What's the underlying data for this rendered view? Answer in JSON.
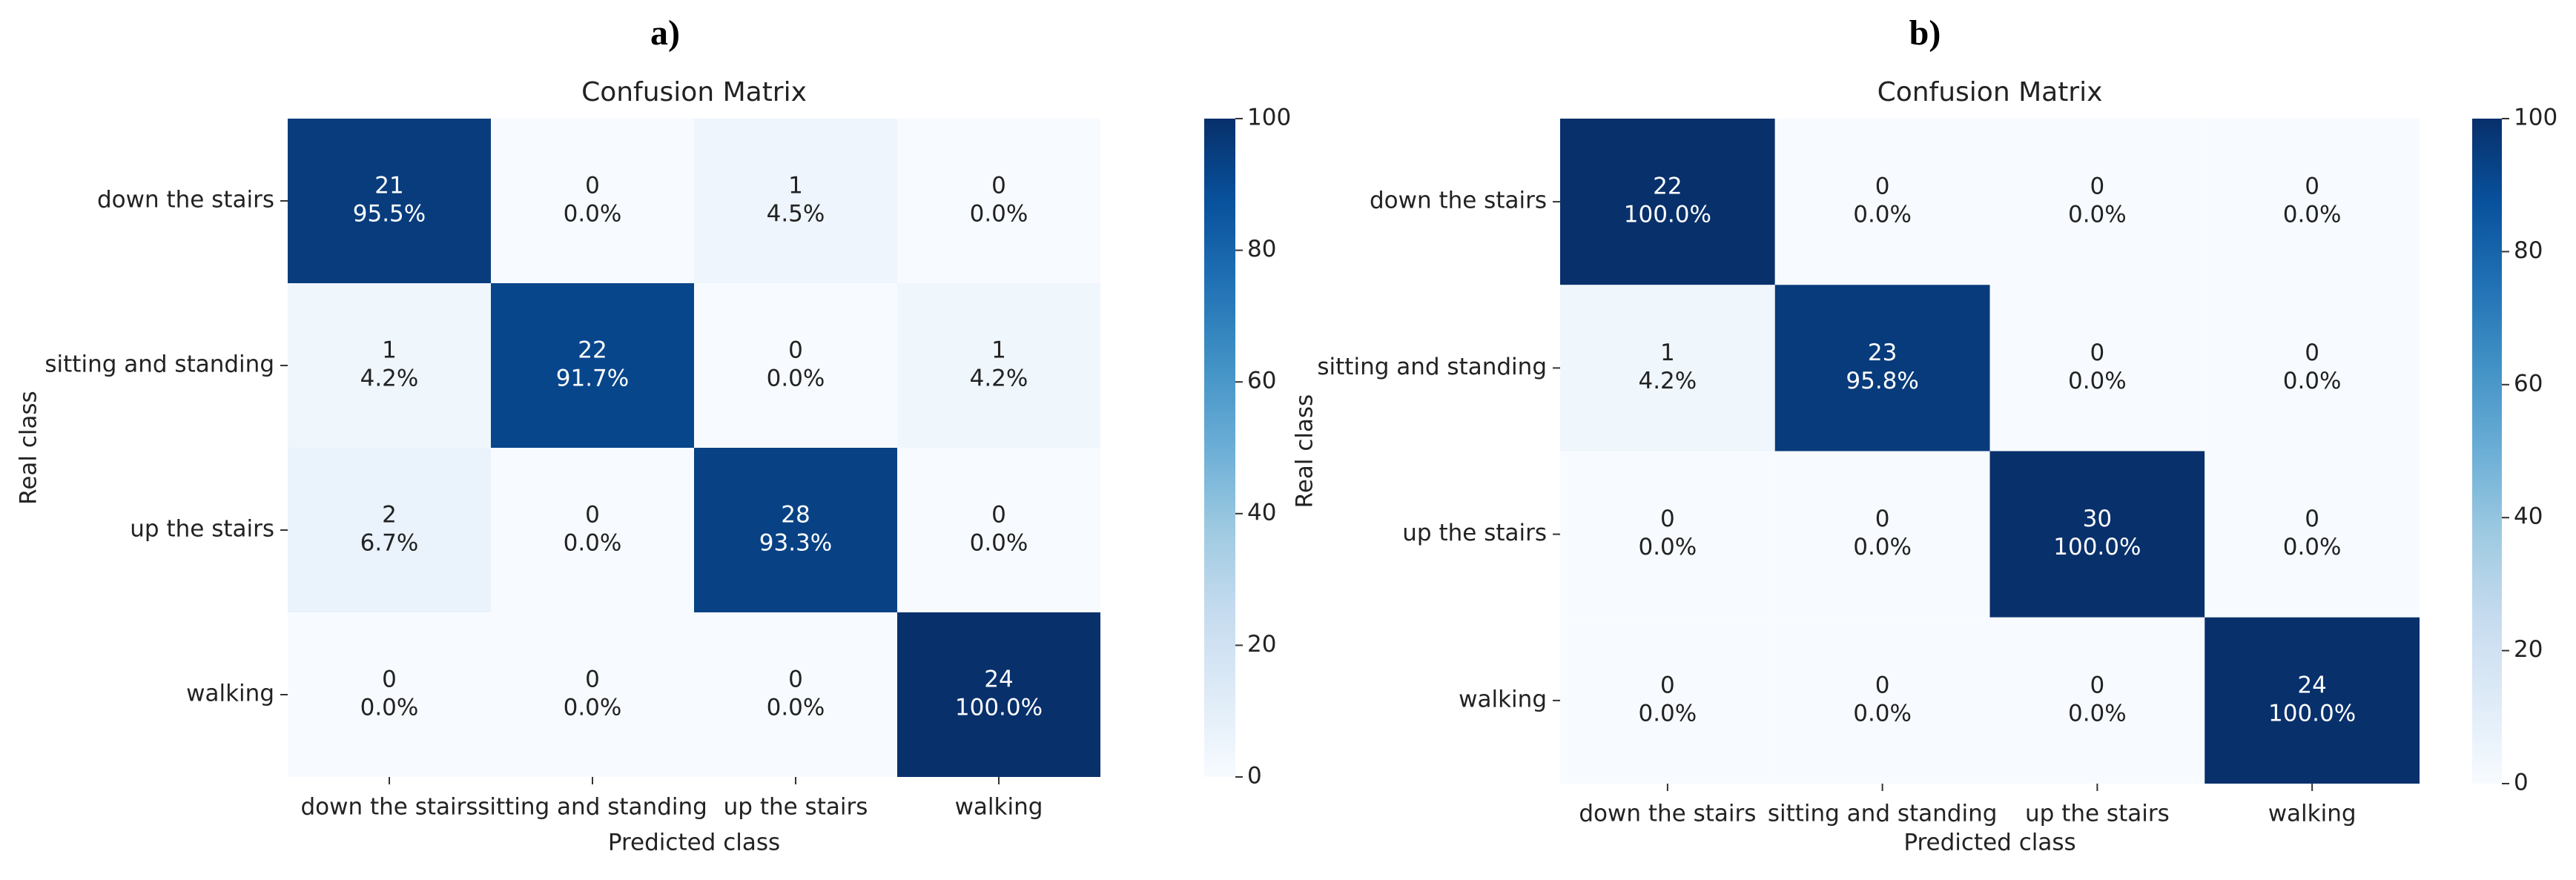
{
  "chart_data": [
    {
      "type": "heatmap",
      "label": "a)",
      "title": "Confusion Matrix",
      "xlabel": "Predicted class",
      "ylabel": "Real class",
      "x_categories": [
        "down the stairs",
        "sitting and standing",
        "up the stairs",
        "walking"
      ],
      "y_categories": [
        "down the stairs",
        "sitting and standing",
        "up the stairs",
        "walking"
      ],
      "counts": [
        [
          21,
          0,
          1,
          0
        ],
        [
          1,
          22,
          0,
          1
        ],
        [
          2,
          0,
          28,
          0
        ],
        [
          0,
          0,
          0,
          24
        ]
      ],
      "values": [
        [
          95.5,
          0,
          4.5,
          0
        ],
        [
          4.2,
          91.7,
          0,
          4.2
        ],
        [
          6.7,
          0,
          93.3,
          0
        ],
        [
          0,
          0,
          0,
          100
        ]
      ],
      "value_labels": [
        [
          "95.5%",
          "0.0%",
          "4.5%",
          "0.0%"
        ],
        [
          "4.2%",
          "91.7%",
          "0.0%",
          "4.2%"
        ],
        [
          "6.7%",
          "0.0%",
          "93.3%",
          "0.0%"
        ],
        [
          "0.0%",
          "0.0%",
          "0.0%",
          "100.0%"
        ]
      ],
      "colormap": "Blues",
      "zlim": [
        0,
        100
      ],
      "zticks": [
        0,
        20,
        40,
        60,
        80,
        100
      ]
    },
    {
      "type": "heatmap",
      "label": "b)",
      "title": "Confusion Matrix",
      "xlabel": "Predicted class",
      "ylabel": "Real class",
      "x_categories": [
        "down the stairs",
        "sitting and standing",
        "up the stairs",
        "walking"
      ],
      "y_categories": [
        "down the stairs",
        "sitting and standing",
        "up the stairs",
        "walking"
      ],
      "counts": [
        [
          22,
          0,
          0,
          0
        ],
        [
          1,
          23,
          0,
          0
        ],
        [
          0,
          0,
          30,
          0
        ],
        [
          0,
          0,
          0,
          24
        ]
      ],
      "values": [
        [
          100,
          0,
          0,
          0
        ],
        [
          4.2,
          95.8,
          0,
          0
        ],
        [
          0,
          0,
          100,
          0
        ],
        [
          0,
          0,
          0,
          100
        ]
      ],
      "value_labels": [
        [
          "100.0%",
          "0.0%",
          "0.0%",
          "0.0%"
        ],
        [
          "4.2%",
          "95.8%",
          "0.0%",
          "0.0%"
        ],
        [
          "0.0%",
          "0.0%",
          "100.0%",
          "0.0%"
        ],
        [
          "0.0%",
          "0.0%",
          "0.0%",
          "100.0%"
        ]
      ],
      "colormap": "Blues",
      "zlim": [
        0,
        100
      ],
      "zticks": [
        0,
        20,
        40,
        60,
        80,
        100
      ]
    }
  ]
}
